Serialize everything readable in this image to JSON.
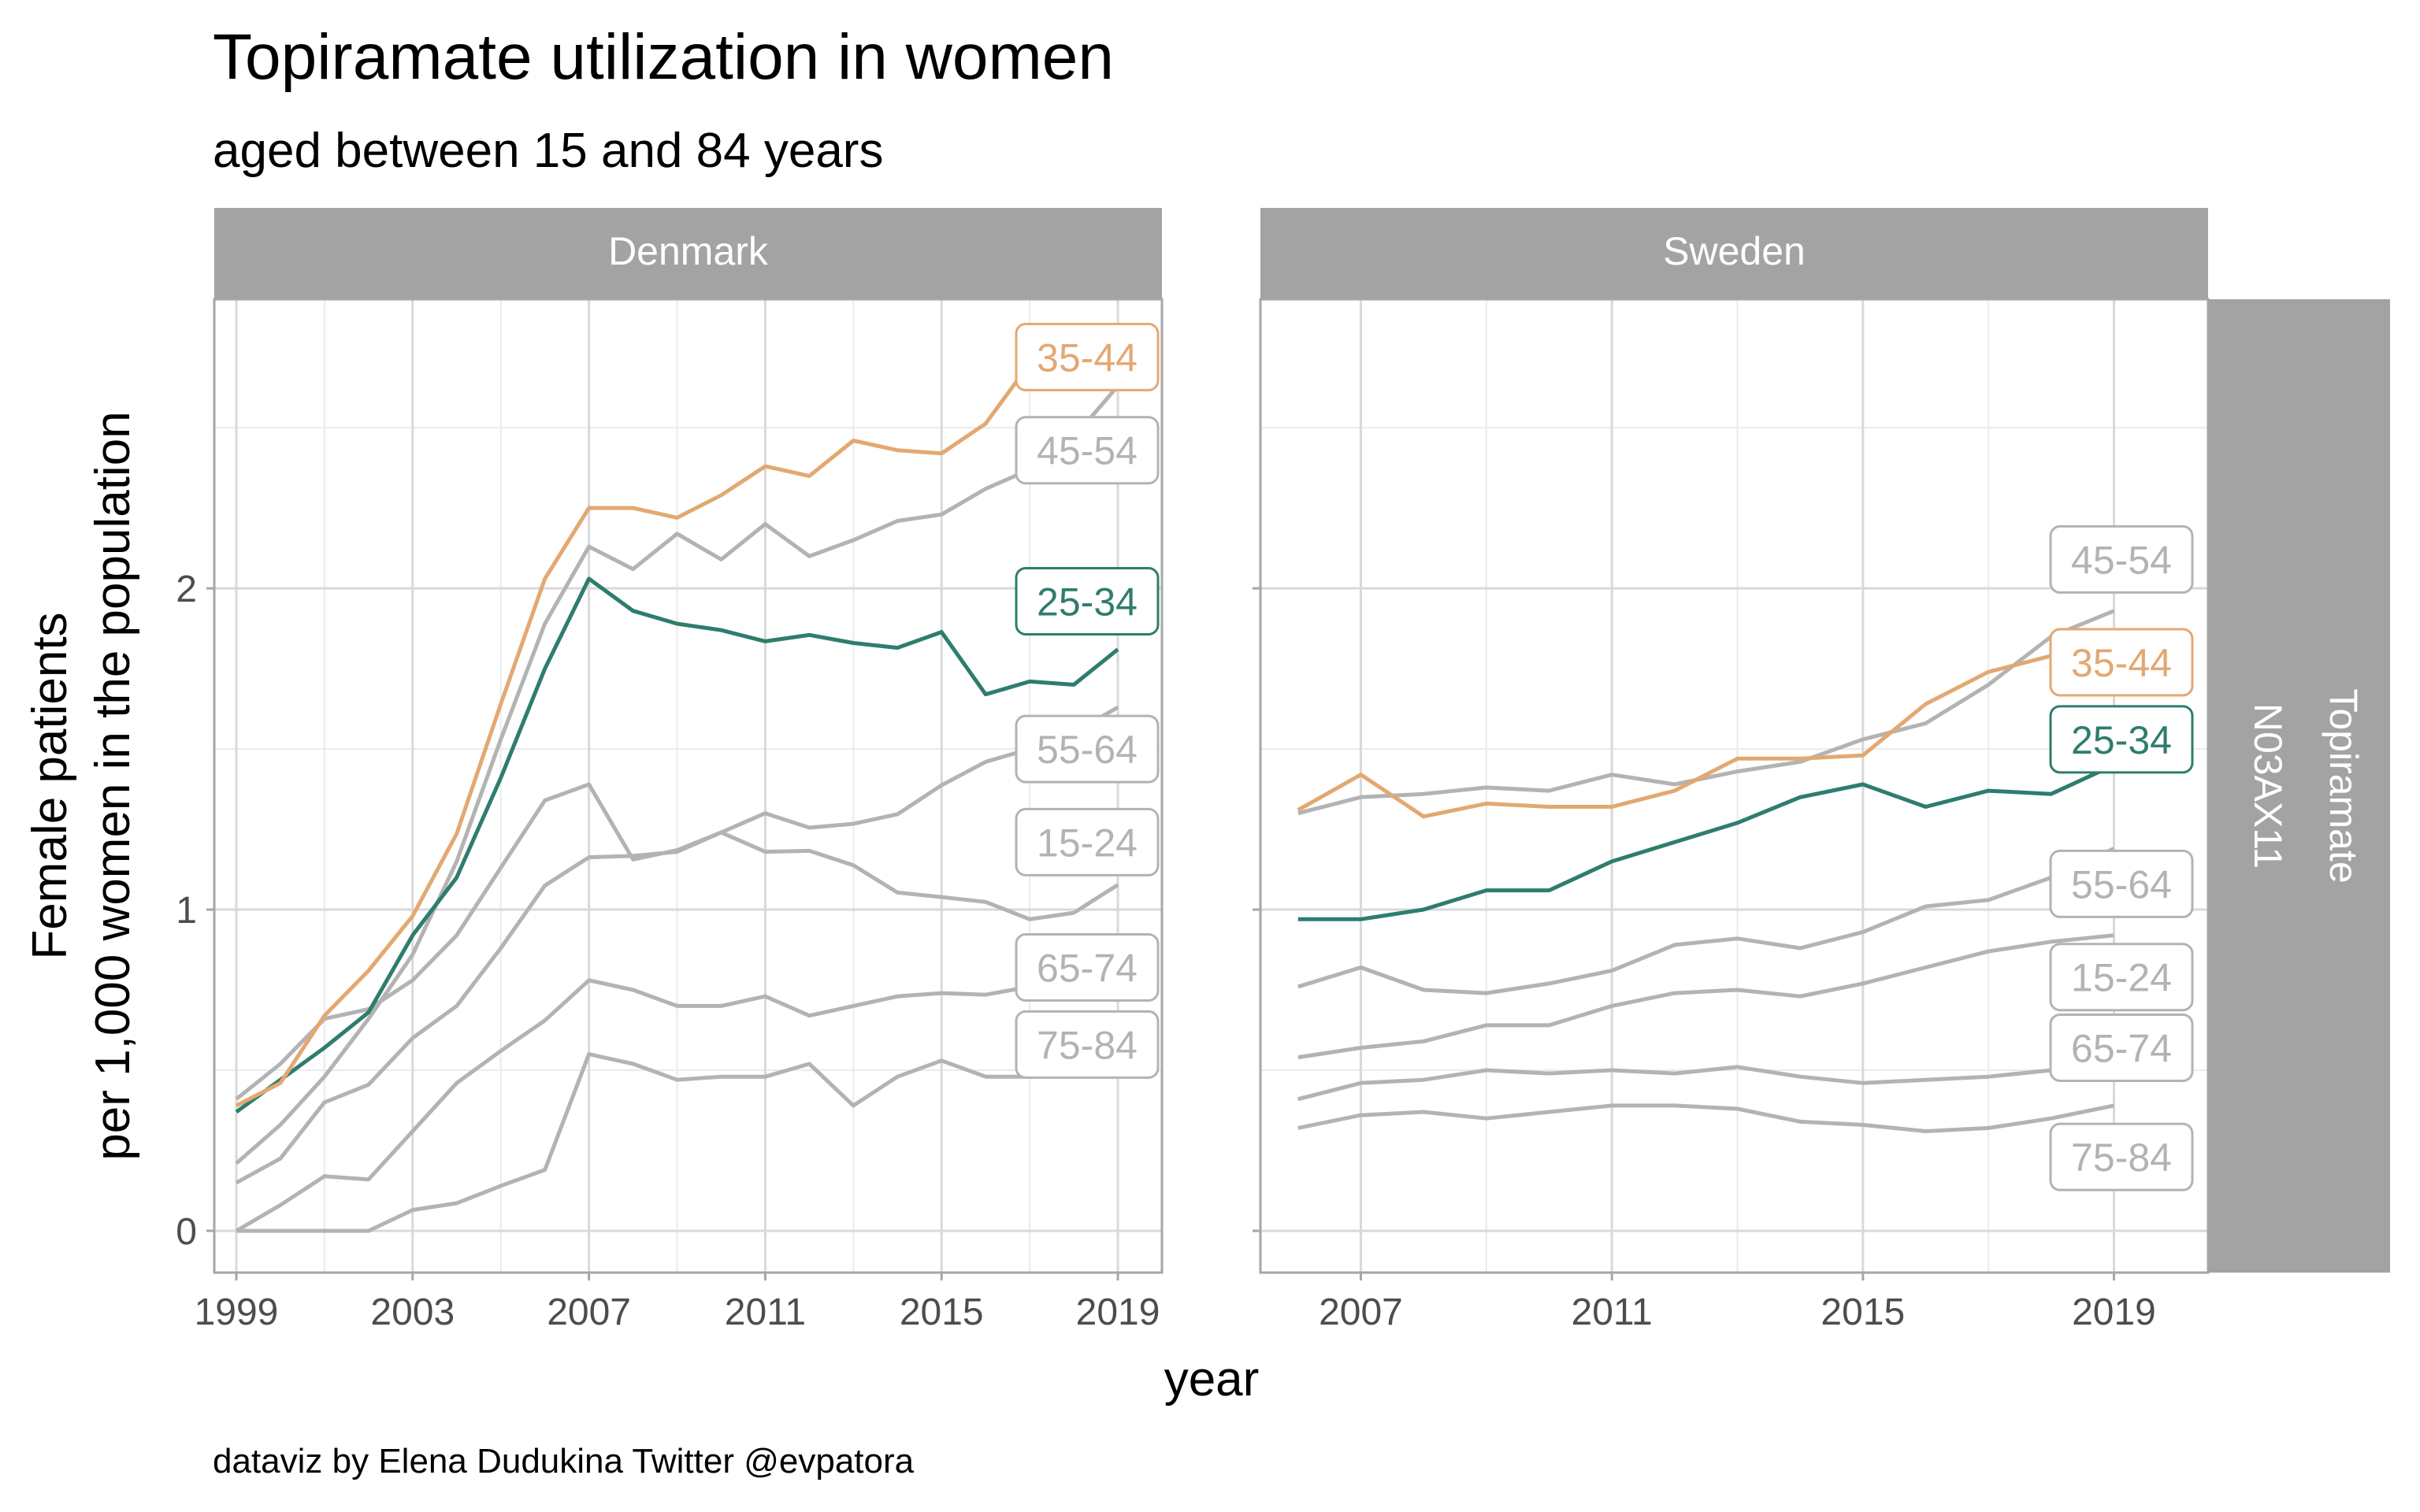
{
  "chart_data": {
    "type": "line",
    "title": "Topiramate utilization in women",
    "subtitle": "aged between 15 and 84 years",
    "xlabel": "year",
    "ylabel": "Female patients\nper 1,000 women in the population",
    "ylabel_lines": [
      "Female patients",
      "per 1,000 women in the population"
    ],
    "caption": "dataviz by Elena Dudukina Twitter @evpatora",
    "row_strip": [
      "Topiramate",
      "N03AX11"
    ],
    "grid": true,
    "legend": "direct-labels-right",
    "ylim": [
      -0.13,
      2.9
    ],
    "yticks": [
      0,
      1,
      2
    ],
    "ytick_labels": [
      "0",
      "1",
      "2"
    ],
    "colors": {
      "highlight_25_34": "#2E7D6E",
      "highlight_35_44": "#E3A872",
      "other": "#B3B3B3",
      "strip": "#A3A3A3"
    },
    "panels": [
      {
        "name": "Denmark",
        "xlim": [
          1998.5,
          2020.0
        ],
        "xticks": [
          1999,
          2003,
          2007,
          2011,
          2015,
          2019
        ],
        "xtick_labels": [
          "1999",
          "2003",
          "2007",
          "2011",
          "2015",
          "2019"
        ],
        "x": [
          1999,
          2000,
          2001,
          2002,
          2003,
          2004,
          2005,
          2006,
          2007,
          2008,
          2009,
          2010,
          2011,
          2012,
          2013,
          2014,
          2015,
          2016,
          2017,
          2018,
          2019
        ],
        "series": [
          {
            "name": "75-84",
            "color_key": "other",
            "label_value": 0.58,
            "values": [
              0,
              0,
              0,
              0,
              0.065,
              0.086,
              0.14,
              0.19,
              0.55,
              0.52,
              0.47,
              0.48,
              0.48,
              0.52,
              0.39,
              0.48,
              0.53,
              0.48,
              0.48,
              0.49,
              0.5
            ]
          },
          {
            "name": "65-74",
            "color_key": "other",
            "label_value": 0.82,
            "values": [
              0,
              0.08,
              0.17,
              0.16,
              0.31,
              0.46,
              0.56,
              0.655,
              0.78,
              0.75,
              0.7,
              0.7,
              0.73,
              0.67,
              0.7,
              0.73,
              0.74,
              0.735,
              0.76,
              0.78,
              0.8
            ]
          },
          {
            "name": "15-24",
            "color_key": "other",
            "label_value": 1.21,
            "values": [
              0.15,
              0.225,
              0.4,
              0.455,
              0.6,
              0.7,
              0.88,
              1.075,
              1.163,
              1.167,
              1.18,
              1.24,
              1.18,
              1.183,
              1.138,
              1.053,
              1.039,
              1.024,
              0.97,
              0.99,
              1.077
            ]
          },
          {
            "name": "55-64",
            "color_key": "other",
            "label_value": 1.5,
            "values": [
              0.41,
              0.52,
              0.66,
              0.69,
              0.78,
              0.92,
              1.13,
              1.34,
              1.39,
              1.156,
              1.185,
              1.24,
              1.3,
              1.255,
              1.267,
              1.297,
              1.387,
              1.46,
              1.5,
              1.55,
              1.63
            ]
          },
          {
            "name": "25-34",
            "color_key": "highlight_25_34",
            "label_value": 1.96,
            "values": [
              0.37,
              0.47,
              0.57,
              0.68,
              0.92,
              1.1,
              1.41,
              1.75,
              2.03,
              1.93,
              1.89,
              1.87,
              1.835,
              1.855,
              1.83,
              1.815,
              1.864,
              1.67,
              1.71,
              1.7,
              1.81
            ]
          },
          {
            "name": "45-54",
            "color_key": "other",
            "label_value": 2.43,
            "values": [
              0.21,
              0.33,
              0.48,
              0.66,
              0.86,
              1.15,
              1.53,
              1.89,
              2.13,
              2.06,
              2.17,
              2.09,
              2.2,
              2.1,
              2.15,
              2.21,
              2.23,
              2.31,
              2.37,
              2.47,
              2.63
            ]
          },
          {
            "name": "35-44",
            "color_key": "highlight_35_44",
            "label_value": 2.72,
            "values": [
              0.39,
              0.46,
              0.67,
              0.81,
              0.98,
              1.236,
              1.64,
              2.03,
              2.25,
              2.25,
              2.22,
              2.29,
              2.38,
              2.35,
              2.46,
              2.43,
              2.42,
              2.513,
              2.7,
              2.76,
              2.82
            ]
          }
        ]
      },
      {
        "name": "Sweden",
        "xlim": [
          2005.4,
          2020.5
        ],
        "xticks": [
          2007,
          2011,
          2015,
          2019
        ],
        "xtick_labels": [
          "2007",
          "2011",
          "2015",
          "2019"
        ],
        "x": [
          2006,
          2007,
          2008,
          2009,
          2010,
          2011,
          2012,
          2013,
          2014,
          2015,
          2016,
          2017,
          2018,
          2019
        ],
        "series": [
          {
            "name": "75-84",
            "color_key": "other",
            "label_value": 0.23,
            "values": [
              0.32,
              0.36,
              0.37,
              0.35,
              0.37,
              0.39,
              0.39,
              0.38,
              0.34,
              0.33,
              0.31,
              0.32,
              0.35,
              0.39
            ]
          },
          {
            "name": "65-74",
            "color_key": "other",
            "label_value": 0.57,
            "values": [
              0.41,
              0.46,
              0.47,
              0.5,
              0.49,
              0.5,
              0.49,
              0.51,
              0.48,
              0.46,
              0.47,
              0.48,
              0.5,
              0.51
            ]
          },
          {
            "name": "15-24",
            "color_key": "other",
            "label_value": 0.79,
            "values": [
              0.54,
              0.57,
              0.59,
              0.64,
              0.64,
              0.7,
              0.74,
              0.75,
              0.73,
              0.77,
              0.82,
              0.87,
              0.9,
              0.92
            ]
          },
          {
            "name": "55-64",
            "color_key": "other",
            "label_value": 1.08,
            "values": [
              0.76,
              0.82,
              0.75,
              0.74,
              0.77,
              0.81,
              0.89,
              0.91,
              0.88,
              0.93,
              1.01,
              1.03,
              1.1,
              1.19
            ]
          },
          {
            "name": "25-34",
            "color_key": "highlight_25_34",
            "label_value": 1.53,
            "values": [
              0.97,
              0.97,
              1.0,
              1.06,
              1.06,
              1.15,
              1.21,
              1.27,
              1.35,
              1.39,
              1.32,
              1.37,
              1.36,
              1.45
            ]
          },
          {
            "name": "35-44",
            "color_key": "highlight_35_44",
            "label_value": 1.77,
            "values": [
              1.31,
              1.42,
              1.29,
              1.33,
              1.32,
              1.32,
              1.37,
              1.47,
              1.47,
              1.48,
              1.64,
              1.74,
              1.79,
              1.86
            ]
          },
          {
            "name": "45-54",
            "color_key": "other",
            "label_value": 2.09,
            "values": [
              1.3,
              1.35,
              1.36,
              1.38,
              1.37,
              1.42,
              1.39,
              1.43,
              1.46,
              1.53,
              1.58,
              1.7,
              1.85,
              1.93
            ]
          }
        ]
      }
    ]
  }
}
